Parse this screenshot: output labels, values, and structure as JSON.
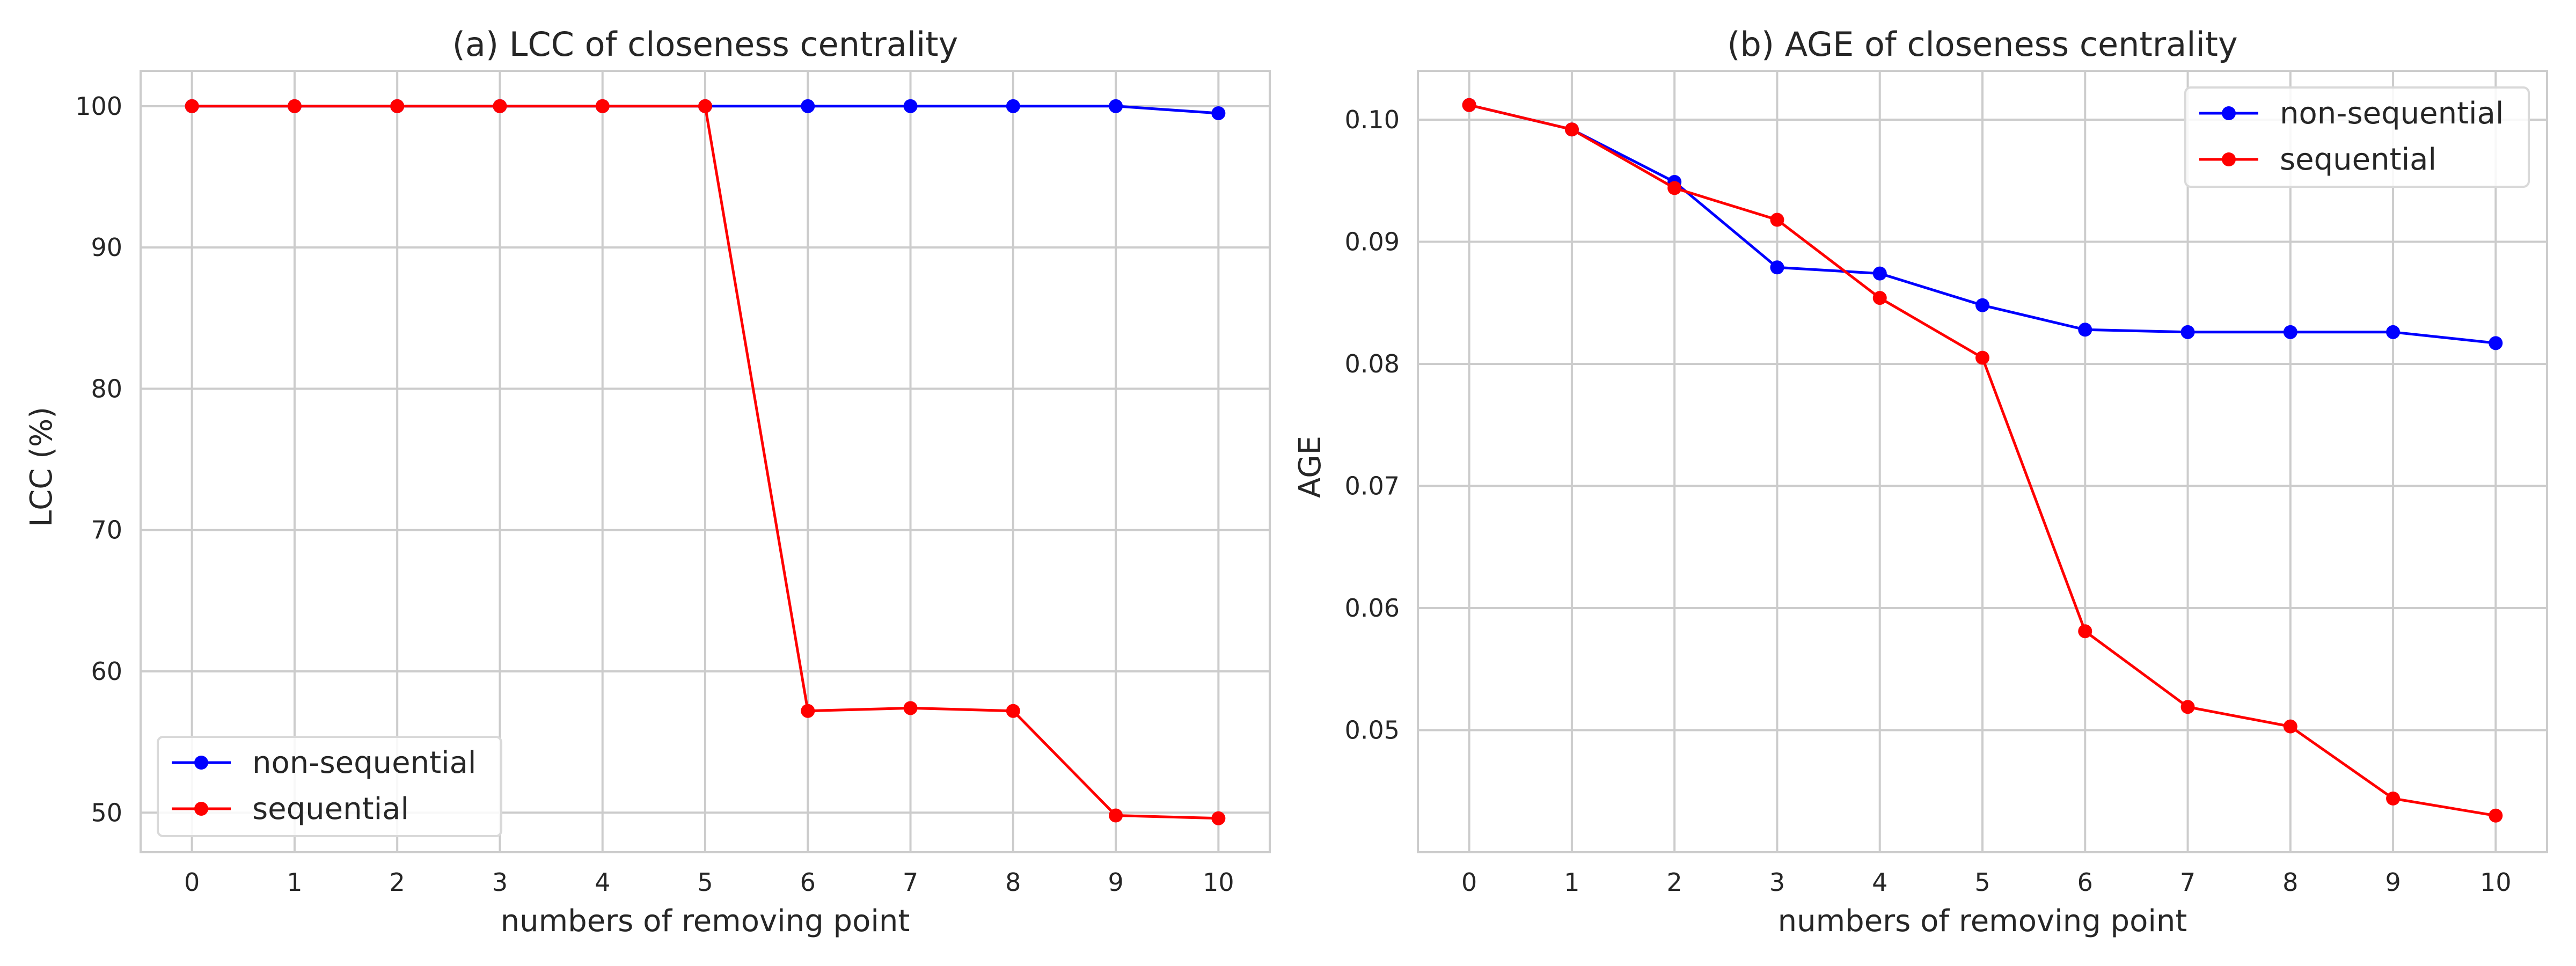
{
  "chart_data": [
    {
      "type": "line",
      "title": "(a) LCC of closeness centrality",
      "xlabel": "numbers of removing point",
      "ylabel": "LCC (%)",
      "x": [
        0,
        1,
        2,
        3,
        4,
        5,
        6,
        7,
        8,
        9,
        10
      ],
      "xlim": [
        -0.5,
        10.5
      ],
      "ylim": [
        47.2,
        102.5
      ],
      "xticks": [
        "0",
        "1",
        "2",
        "3",
        "4",
        "5",
        "6",
        "7",
        "8",
        "9",
        "10"
      ],
      "yticks": [
        50,
        60,
        70,
        80,
        90,
        100
      ],
      "yticklabels": [
        "50",
        "60",
        "70",
        "80",
        "90",
        "100"
      ],
      "grid": true,
      "legend_position": "lower-left",
      "series": [
        {
          "name": "non-sequential",
          "color": "#0000ff",
          "values": [
            100,
            100,
            100,
            100,
            100,
            100,
            100,
            100,
            100,
            100,
            99.5
          ]
        },
        {
          "name": "sequential",
          "color": "#ff0000",
          "values": [
            100,
            100,
            100,
            100,
            100,
            100,
            57.2,
            57.4,
            57.2,
            49.8,
            49.6
          ]
        }
      ]
    },
    {
      "type": "line",
      "title": "(b) AGE of closeness centrality",
      "xlabel": "numbers of removing point",
      "ylabel": "AGE",
      "x": [
        0,
        1,
        2,
        3,
        4,
        5,
        6,
        7,
        8,
        9,
        10
      ],
      "xlim": [
        -0.5,
        10.5
      ],
      "ylim": [
        0.04,
        0.104
      ],
      "xticks": [
        "0",
        "1",
        "2",
        "3",
        "4",
        "5",
        "6",
        "7",
        "8",
        "9",
        "10"
      ],
      "yticks": [
        0.05,
        0.06,
        0.07,
        0.08,
        0.09,
        0.1
      ],
      "yticklabels": [
        "0.05",
        "0.06",
        "0.07",
        "0.08",
        "0.09",
        "0.10"
      ],
      "grid": true,
      "legend_position": "upper-right",
      "series": [
        {
          "name": "non-sequential",
          "color": "#0000ff",
          "values": [
            0.1012,
            0.0992,
            0.0949,
            0.0879,
            0.0874,
            0.0848,
            0.0828,
            0.0826,
            0.0826,
            0.0826,
            0.0817
          ]
        },
        {
          "name": "sequential",
          "color": "#ff0000",
          "values": [
            0.1012,
            0.0992,
            0.0944,
            0.0918,
            0.0854,
            0.0805,
            0.0581,
            0.0519,
            0.0503,
            0.0444,
            0.043
          ]
        }
      ]
    }
  ]
}
